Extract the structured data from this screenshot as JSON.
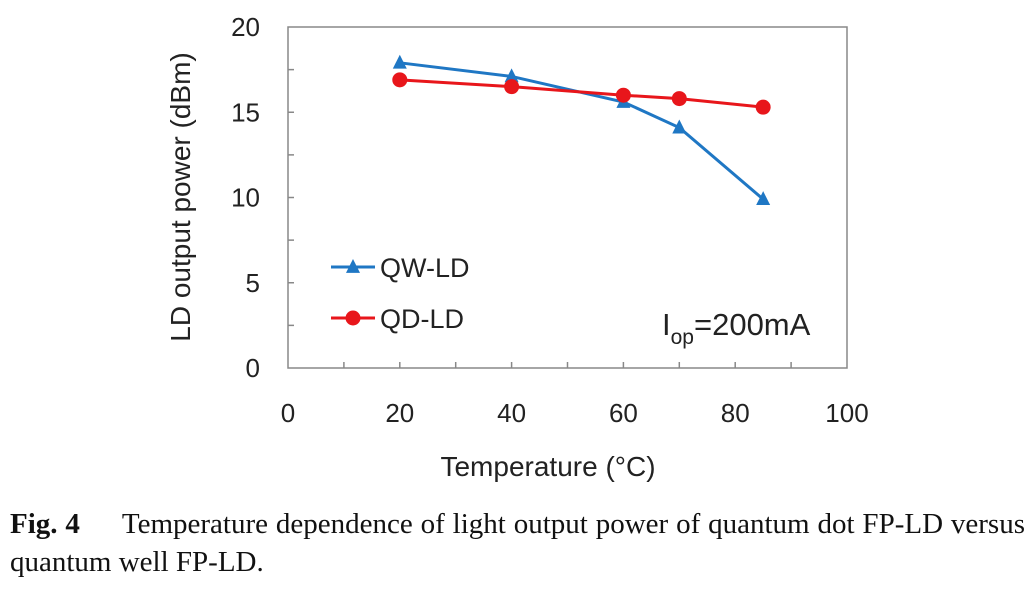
{
  "chart_data": {
    "type": "line",
    "xlabel": "Temperature (°C)",
    "ylabel": "LD output power (dBm)",
    "xlim": [
      0,
      100
    ],
    "ylim": [
      0,
      20
    ],
    "xticks": [
      0,
      20,
      40,
      60,
      80,
      100
    ],
    "yticks": [
      0,
      5,
      10,
      15,
      20
    ],
    "grid": false,
    "legend_position": "left",
    "series": [
      {
        "name": "QW-LD",
        "color": "#1f77c4",
        "marker": "triangle",
        "x": [
          20,
          40,
          60,
          70,
          85
        ],
        "y": [
          17.9,
          17.1,
          15.6,
          14.1,
          9.9
        ]
      },
      {
        "name": "QD-LD",
        "color": "#e8161b",
        "marker": "circle",
        "x": [
          20,
          40,
          60,
          70,
          85
        ],
        "y": [
          16.9,
          16.5,
          16.0,
          15.8,
          15.3
        ]
      }
    ],
    "annotation": {
      "main": "I",
      "sub": "op",
      "rest": "=200mA"
    }
  },
  "caption": {
    "label": "Fig. 4",
    "text": "Temperature dependence of light output power of quantum dot FP-LD versus quantum well FP-LD."
  }
}
